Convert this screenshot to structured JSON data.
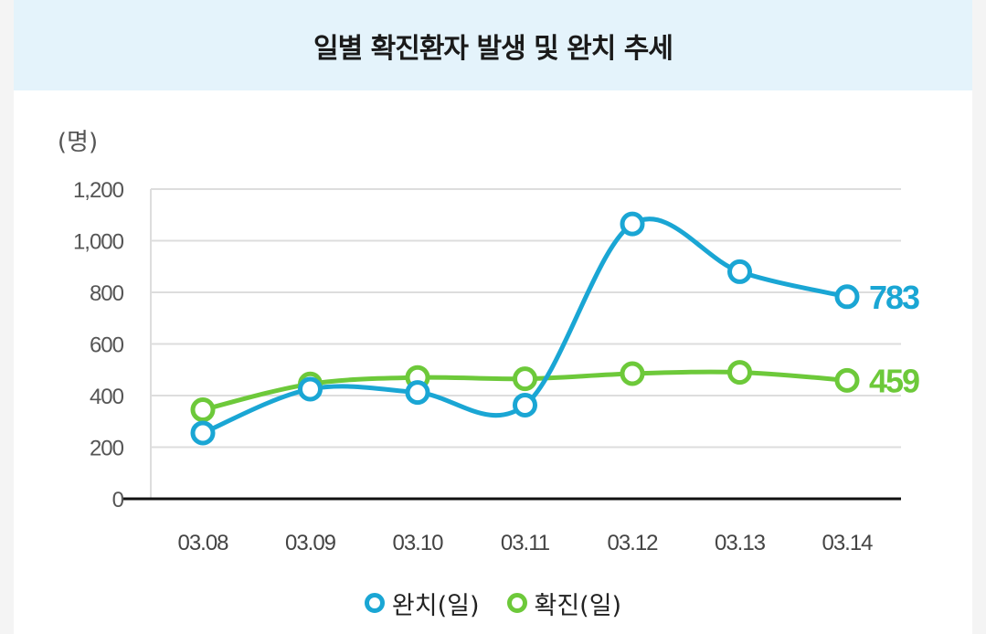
{
  "colors": {
    "completed": "#1aa6d4",
    "confirmed": "#6dc93a",
    "header_bg": "#e4f3fb",
    "grid": "#dddddd",
    "axis": "#111111"
  },
  "chart_data": {
    "type": "line",
    "title": "일별 확진환자 발생 및 완치 추세",
    "unit_label": "(명)",
    "categories": [
      "03.08",
      "03.09",
      "03.10",
      "03.11",
      "03.12",
      "03.13",
      "03.14"
    ],
    "y_ticks": [
      "0",
      "200",
      "400",
      "600",
      "800",
      "1,000",
      "1,200"
    ],
    "ylim": [
      0,
      1200
    ],
    "grid": true,
    "legend_position": "bottom",
    "series": [
      {
        "name": "완치(일)",
        "key": "completed",
        "values": [
          255,
          425,
          412,
          363,
          1065,
          880,
          783
        ],
        "end_label": "783"
      },
      {
        "name": "확진(일)",
        "key": "confirmed",
        "values": [
          345,
          445,
          470,
          465,
          485,
          490,
          459
        ],
        "end_label": "459"
      }
    ]
  }
}
